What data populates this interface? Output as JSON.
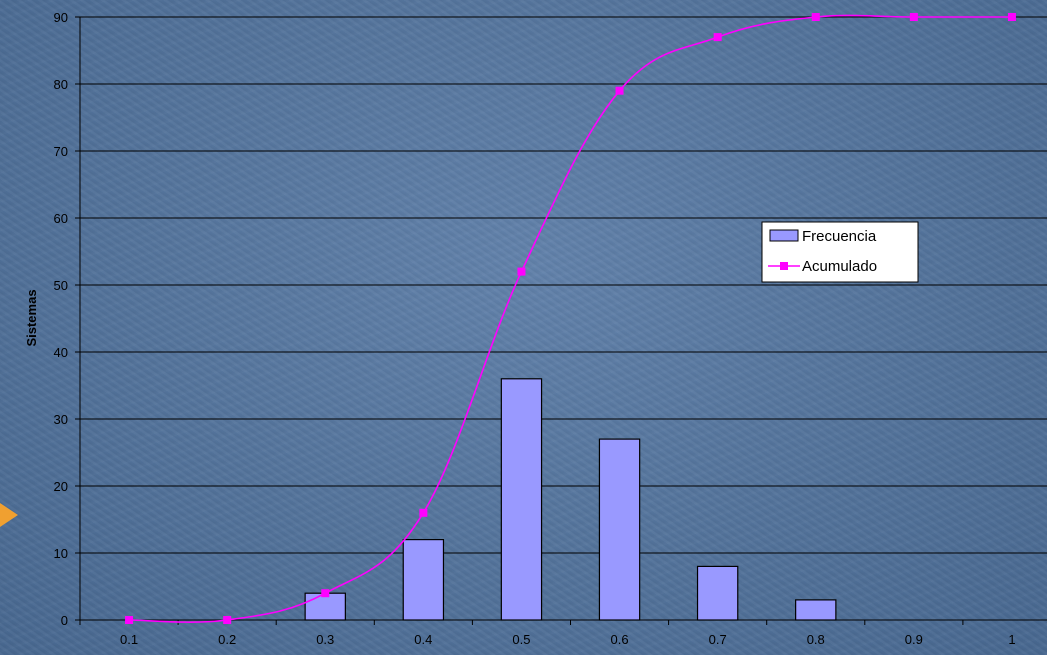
{
  "chart_data": {
    "type": "bar",
    "title": "",
    "xlabel": "",
    "ylabel": "Sistemas",
    "ylim": [
      0,
      90
    ],
    "yticks": [
      0,
      10,
      20,
      30,
      40,
      50,
      60,
      70,
      80,
      90
    ],
    "categories": [
      "0.1",
      "0.2",
      "0.3",
      "0.4",
      "0.5",
      "0.6",
      "0.7",
      "0.8",
      "0.9",
      "1"
    ],
    "grid": "horizontal",
    "legend_position": "right",
    "series": [
      {
        "name": "Frecuencia",
        "kind": "bar",
        "color": "#9999ff",
        "values": [
          0,
          0,
          4,
          12,
          36,
          27,
          8,
          3,
          0,
          0
        ]
      },
      {
        "name": "Acumulado",
        "kind": "line",
        "color": "#ff00ff",
        "values": [
          0,
          0,
          4,
          16,
          52,
          79,
          87,
          90,
          90,
          90
        ]
      }
    ]
  },
  "decor": {
    "pointer_color": "#f0a030",
    "pointer_name": "slide-bullet-arrow"
  }
}
